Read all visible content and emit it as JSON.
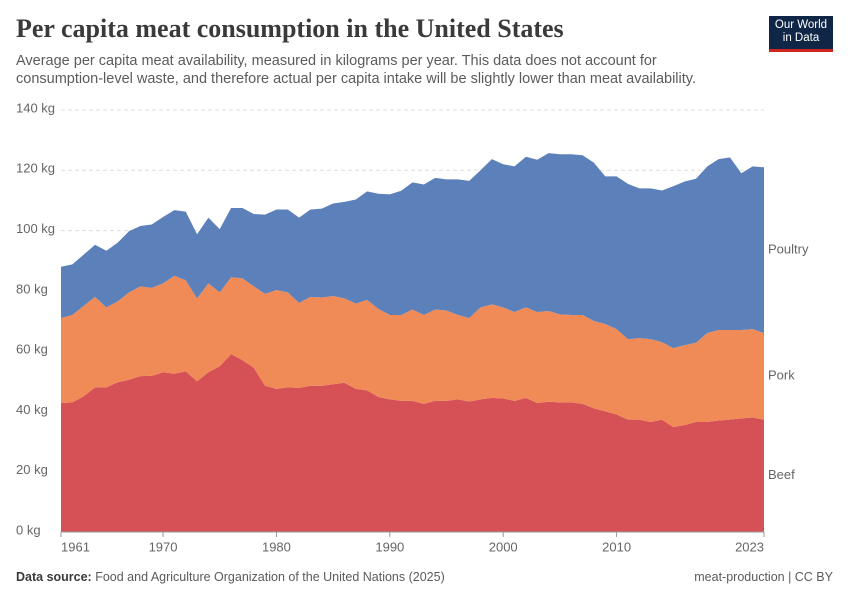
{
  "chart_data": {
    "type": "stacked-area",
    "title": "Per capita meat consumption in the United States",
    "subtitle": "Average per capita meat availability, measured in kilograms per year. This data does not account for consumption-level waste, and therefore actual per capita intake will be slightly lower than meat availability.",
    "logo": [
      "Our World",
      "in Data"
    ],
    "source": {
      "label": "Data source:",
      "text": "Food and Agriculture Organization of the United Nations (2025)"
    },
    "footer_right": "meat-production | CC BY",
    "x": [
      1961,
      1962,
      1963,
      1964,
      1965,
      1966,
      1967,
      1968,
      1969,
      1970,
      1971,
      1972,
      1973,
      1974,
      1975,
      1976,
      1977,
      1978,
      1979,
      1980,
      1981,
      1982,
      1983,
      1984,
      1985,
      1986,
      1987,
      1988,
      1989,
      1990,
      1991,
      1992,
      1993,
      1994,
      1995,
      1996,
      1997,
      1998,
      1999,
      2000,
      2001,
      2002,
      2003,
      2004,
      2005,
      2006,
      2007,
      2008,
      2009,
      2010,
      2011,
      2012,
      2013,
      2014,
      2015,
      2016,
      2017,
      2018,
      2019,
      2020,
      2021,
      2022,
      2023
    ],
    "xlim": [
      1961,
      2023
    ],
    "xticks": [
      1961,
      1970,
      1980,
      1990,
      2000,
      2010,
      2023
    ],
    "ylim": [
      0,
      140
    ],
    "yticks": [
      {
        "value": 0,
        "label": "0 kg"
      },
      {
        "value": 20,
        "label": "20 kg"
      },
      {
        "value": 40,
        "label": "40 kg"
      },
      {
        "value": 60,
        "label": "60 kg"
      },
      {
        "value": 80,
        "label": "80 kg"
      },
      {
        "value": 100,
        "label": "100 kg"
      },
      {
        "value": 120,
        "label": "120 kg"
      },
      {
        "value": 140,
        "label": "140 kg"
      }
    ],
    "grid": true,
    "legend": "right",
    "series": [
      {
        "name": "Beef",
        "color": "#d65155",
        "label_color": "#c0302e",
        "values": [
          42.8,
          43,
          45,
          48,
          48,
          49.7,
          50.5,
          51.7,
          51.8,
          53,
          52.5,
          53.3,
          50,
          53,
          55,
          59,
          57,
          54.5,
          48.5,
          47.5,
          48,
          47.8,
          48.5,
          48.5,
          49,
          49.5,
          47.5,
          47,
          44.8,
          44,
          43.5,
          43.5,
          42.5,
          43.5,
          43.5,
          44,
          43.3,
          44,
          44.5,
          44.3,
          43.5,
          44.5,
          42.8,
          43.2,
          43,
          43,
          42.5,
          41,
          40,
          39,
          37.3,
          37.3,
          36.5,
          37.3,
          34.8,
          35.5,
          36.5,
          36.5,
          37,
          37.3,
          37.7,
          38,
          37.3
        ]
      },
      {
        "name": "Pork",
        "color": "#f08b58",
        "label_color": "#e0652c",
        "values": [
          28.2,
          29,
          30,
          30,
          26.5,
          26.8,
          29,
          29.8,
          29.2,
          29.5,
          32.5,
          30.2,
          27.5,
          29.5,
          24.5,
          25.5,
          27.2,
          27,
          30.5,
          32.8,
          31.5,
          28.2,
          29.5,
          29.3,
          29.3,
          28,
          28.3,
          30,
          29.2,
          28,
          28.5,
          30.3,
          29.5,
          30.3,
          30,
          28,
          27.7,
          30.5,
          31,
          30.2,
          29.5,
          30,
          30.2,
          30.1,
          29.2,
          29,
          29.5,
          29,
          29,
          28.3,
          26.7,
          27,
          27.5,
          25.7,
          26.2,
          26.5,
          26.3,
          29.5,
          30,
          29.7,
          29.3,
          29.3,
          28.7
        ]
      },
      {
        "name": "Poultry",
        "color": "#5b80ba",
        "label_color": "#2c5aa0",
        "values": [
          17,
          16.8,
          17,
          17.3,
          18.8,
          19.5,
          20.3,
          20,
          21,
          22,
          21.8,
          22.8,
          21.3,
          21.8,
          21,
          23,
          23.3,
          24,
          26.3,
          26.7,
          27.5,
          28.3,
          29,
          29.5,
          30.7,
          32,
          34.5,
          36,
          38.2,
          40,
          41.2,
          42.2,
          43.3,
          43.7,
          43.5,
          45,
          45.5,
          45.5,
          48.2,
          47.5,
          48.3,
          50,
          50.5,
          52.4,
          53.1,
          53.3,
          53,
          52.5,
          49,
          50.7,
          51.5,
          49.7,
          50,
          50.3,
          53.7,
          54.3,
          54.4,
          55.3,
          56.7,
          57.3,
          52,
          54,
          55
        ]
      }
    ]
  }
}
